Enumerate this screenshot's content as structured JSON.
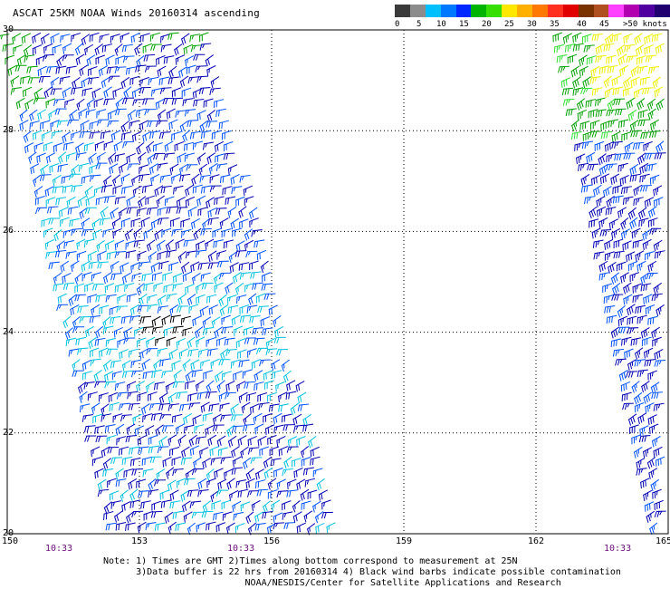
{
  "title": "ASCAT 25KM NOAA Winds 20160314 ascending",
  "legend": {
    "colors": [
      "#3a3a3a",
      "#8c8c8c",
      "#00bfff",
      "#0078ff",
      "#0028ff",
      "#00b400",
      "#35e000",
      "#ffe800",
      "#ffb000",
      "#ff7800",
      "#ff3020",
      "#e00000",
      "#7a3200",
      "#b05020",
      "#ff40ff",
      "#b000b0",
      "#5000a0",
      "#200070"
    ],
    "labels": [
      "0",
      "5",
      "10",
      "15",
      "20",
      "25",
      "30",
      "35",
      "40",
      "45",
      ">50 knots"
    ]
  },
  "map": {
    "lat_labels": [
      "30",
      "28",
      "26",
      "24",
      "22",
      "20"
    ],
    "lon_labels": [
      "150",
      "153",
      "156",
      "159",
      "162",
      "165"
    ],
    "time_labels": [
      "10:33",
      "10:33",
      "10:33"
    ],
    "lat_range": [
      20,
      30
    ],
    "lon_range": [
      150,
      165
    ],
    "gridlines": "dotted",
    "barb_colors": {
      "light": "#00c0e0",
      "mid": "#0050ff",
      "dark": "#0000b4",
      "green": "#00a000",
      "lightgreen": "#30e030",
      "yellow": "#f0f000",
      "contaminated": "#000000"
    }
  },
  "notes": [
    "Note: 1) Times are GMT 2)Times along bottom correspond to measurement at 25N",
    "      3)Data buffer is 22 hrs from 20160314 4) Black wind barbs indicate possible contamination",
    "                          NOAA/NESDIS/Center for Satellite Applications and Research"
  ]
}
